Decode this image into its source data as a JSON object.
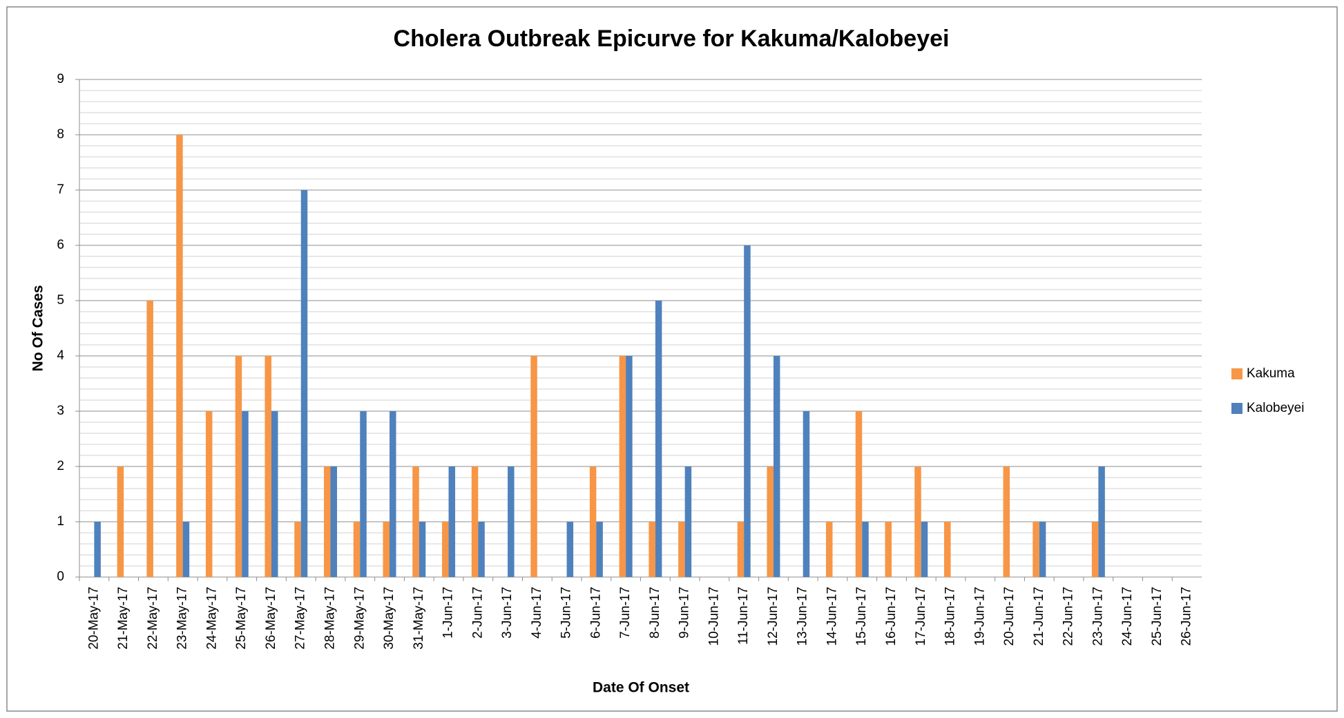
{
  "chart_data": {
    "type": "bar",
    "title": "Cholera Outbreak Epicurve for Kakuma/Kalobeyei",
    "x_label": "Date Of Onset",
    "y_label": "No Of Cases",
    "categories": [
      "20-May-17",
      "21-May-17",
      "22-May-17",
      "23-May-17",
      "24-May-17",
      "25-May-17",
      "26-May-17",
      "27-May-17",
      "28-May-17",
      "29-May-17",
      "30-May-17",
      "31-May-17",
      "1-Jun-17",
      "2-Jun-17",
      "3-Jun-17",
      "4-Jun-17",
      "5-Jun-17",
      "6-Jun-17",
      "7-Jun-17",
      "8-Jun-17",
      "9-Jun-17",
      "10-Jun-17",
      "11-Jun-17",
      "12-Jun-17",
      "13-Jun-17",
      "14-Jun-17",
      "15-Jun-17",
      "16-Jun-17",
      "17-Jun-17",
      "18-Jun-17",
      "19-Jun-17",
      "20-Jun-17",
      "21-Jun-17",
      "22-Jun-17",
      "23-Jun-17",
      "24-Jun-17",
      "25-Jun-17",
      "26-Jun-17"
    ],
    "series": [
      {
        "name": "Kakuma",
        "color": "#f79646",
        "values": [
          0,
          2,
          5,
          8,
          3,
          4,
          4,
          1,
          2,
          1,
          1,
          2,
          1,
          2,
          0,
          4,
          0,
          2,
          4,
          1,
          1,
          0,
          1,
          2,
          0,
          1,
          3,
          1,
          2,
          1,
          0,
          2,
          1,
          0,
          1,
          0,
          0,
          0
        ]
      },
      {
        "name": "Kalobeyei",
        "color": "#4f81bd",
        "values": [
          1,
          0,
          0,
          1,
          0,
          3,
          3,
          7,
          2,
          3,
          3,
          1,
          2,
          1,
          2,
          0,
          1,
          1,
          4,
          5,
          2,
          0,
          6,
          4,
          3,
          0,
          1,
          0,
          1,
          0,
          0,
          0,
          1,
          0,
          2,
          0,
          0,
          0
        ]
      }
    ],
    "ylim": [
      0,
      9
    ],
    "yticks": [
      0,
      1,
      2,
      3,
      4,
      5,
      6,
      7,
      8,
      9
    ],
    "grid": true,
    "legend": "right"
  }
}
